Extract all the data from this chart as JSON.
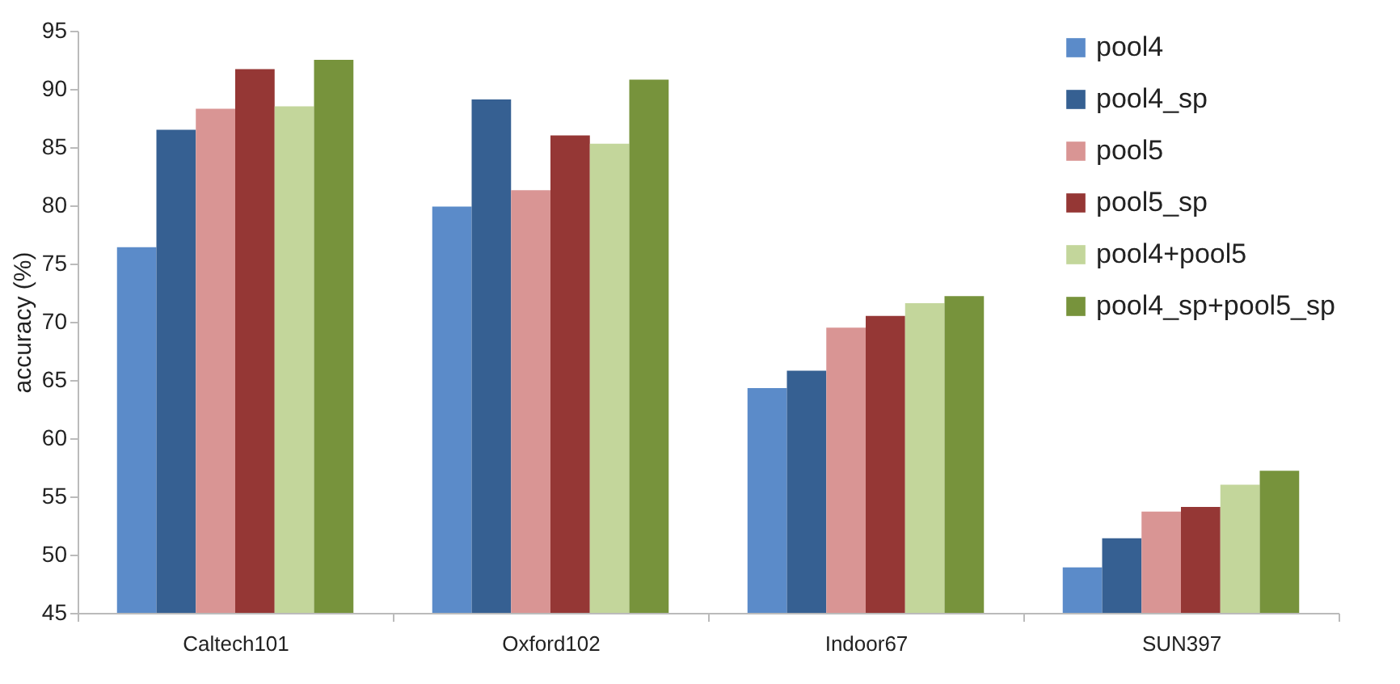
{
  "chart_data": {
    "type": "bar",
    "ylabel": "accuracy (%)",
    "categories": [
      "Caltech101",
      "Oxford102",
      "Indoor67",
      "SUN397"
    ],
    "series": [
      {
        "name": "pool4",
        "color": "#5b8bc9",
        "values": [
          76.4,
          79.9,
          64.3,
          48.9
        ]
      },
      {
        "name": "pool4_sp",
        "color": "#366092",
        "values": [
          86.5,
          89.1,
          65.8,
          51.4
        ]
      },
      {
        "name": "pool5",
        "color": "#d99594",
        "values": [
          88.3,
          81.3,
          69.5,
          53.7
        ]
      },
      {
        "name": "pool5_sp",
        "color": "#953735",
        "values": [
          91.7,
          86.0,
          70.5,
          54.1
        ]
      },
      {
        "name": "pool4+pool5",
        "color": "#c3d69b",
        "values": [
          88.5,
          85.3,
          71.6,
          56.0
        ]
      },
      {
        "name": "pool4_sp+pool5_sp",
        "color": "#77933c",
        "values": [
          92.5,
          90.8,
          72.2,
          57.2
        ]
      }
    ],
    "ylim": [
      45,
      95
    ],
    "yticks": [
      45,
      50,
      55,
      60,
      65,
      70,
      75,
      80,
      85,
      90,
      95
    ],
    "grid": false,
    "legend": "top right"
  }
}
